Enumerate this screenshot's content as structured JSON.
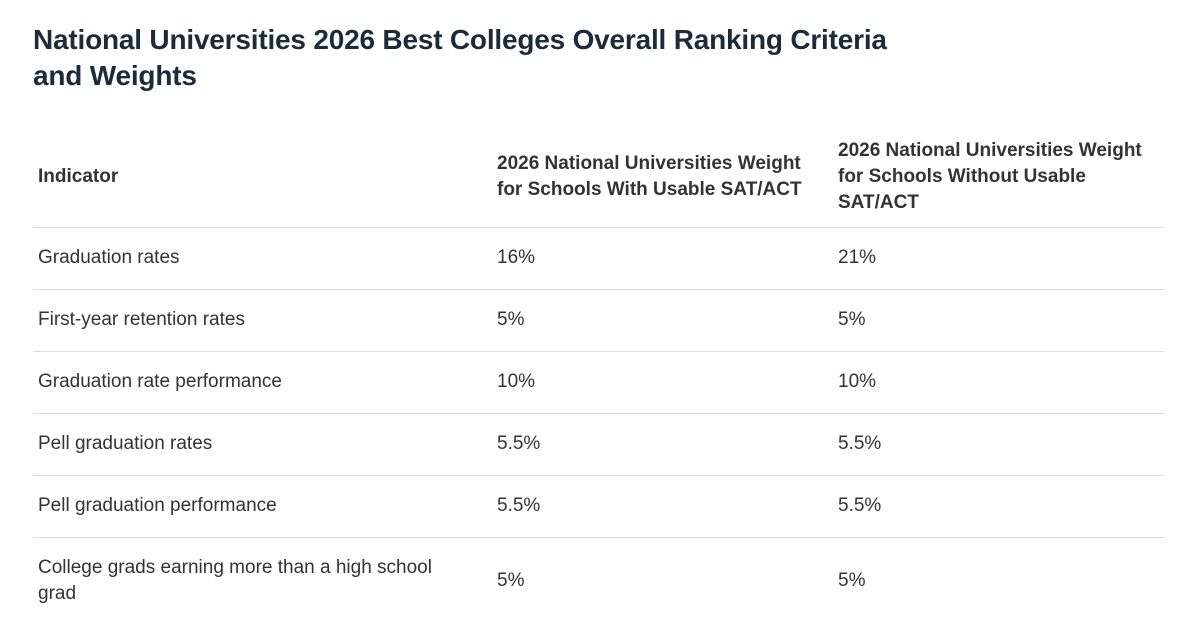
{
  "page": {
    "title_lines": [
      "National Universities 2026 Best Colleges Overall Ranking Criteria",
      "and Weights"
    ]
  },
  "chart_data": {
    "type": "table",
    "title": "National Universities 2026 Best Colleges Overall Ranking Criteria and Weights",
    "columns": [
      "Indicator",
      "2026 National Universities Weight for Schools With Usable SAT/ACT",
      "2026 National Universities Weight for Schools Without Usable SAT/ACT"
    ],
    "categories": [
      "Graduation rates",
      "First-year retention rates",
      "Graduation rate performance",
      "Pell graduation rates",
      "Pell graduation performance",
      "College grads earning more than a high school grad"
    ],
    "series": [
      {
        "name": "2026 National Universities Weight for Schools With Usable SAT/ACT",
        "values": [
          "16%",
          "5%",
          "10%",
          "5.5%",
          "5.5%",
          "5%"
        ]
      },
      {
        "name": "2026 National Universities Weight for Schools Without Usable SAT/ACT",
        "values": [
          "21%",
          "5%",
          "10%",
          "5.5%",
          "5.5%",
          "5%"
        ]
      }
    ],
    "layout": {
      "grid": "horizontal row dividers only",
      "header_style": "bold",
      "legend_position": "none"
    }
  },
  "colors": {
    "title_text": "#1c2b3a",
    "body_text": "#333333",
    "divider": "#dcdcdc",
    "background": "#ffffff"
  }
}
